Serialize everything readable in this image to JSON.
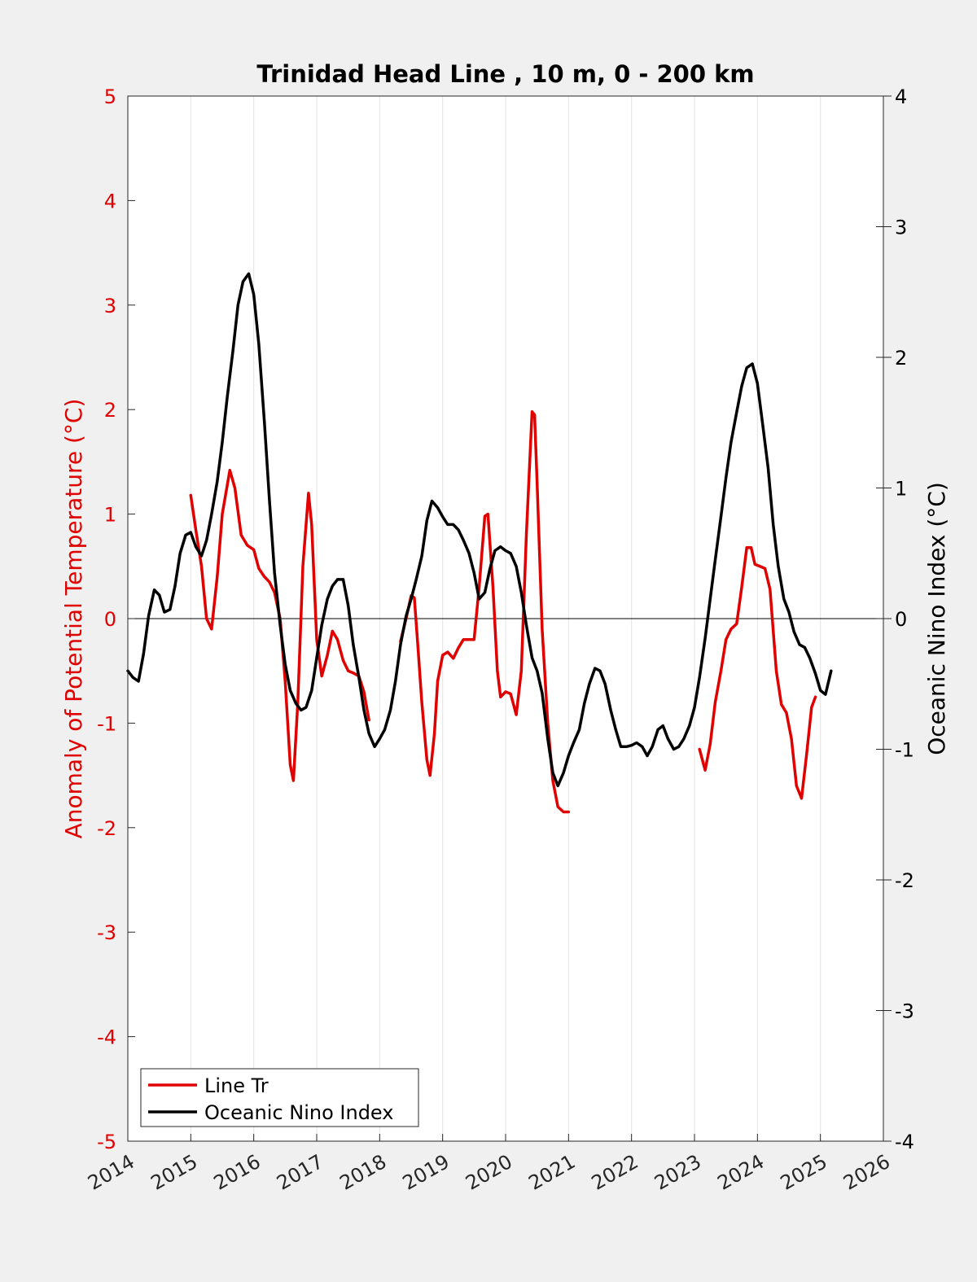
{
  "chart_data": {
    "type": "line",
    "title": "Trinidad Head Line , 10 m, 0 - 200 km",
    "ylabel_left": "Anomaly of Potential Temperature (°C)",
    "ylabel_right": "Oceanic Nino Index (°C)",
    "xlabel": "",
    "xlim": [
      2014,
      2026
    ],
    "ylim_left": [
      -5,
      5
    ],
    "ylim_right": [
      -4,
      4
    ],
    "x_ticks": [
      "2014",
      "2015",
      "2016",
      "2017",
      "2018",
      "2019",
      "2020",
      "2021",
      "2022",
      "2023",
      "2024",
      "2025",
      "2026"
    ],
    "y_ticks_left": [
      "5",
      "4",
      "3",
      "2",
      "1",
      "0",
      "-1",
      "-2",
      "-3",
      "-4",
      "-5"
    ],
    "y_ticks_right": [
      "4",
      "3",
      "2",
      "1",
      "0",
      "-1",
      "-2",
      "-3",
      "-4"
    ],
    "grid": "vertical",
    "zero_line": true,
    "legend_position": "bottom-left",
    "colors": {
      "line_tr": "#e00000",
      "oni": "#000000",
      "left_axis": "#e00000",
      "right_axis": "#000000"
    },
    "series": [
      {
        "name": "Line Tr",
        "axis": "left",
        "color": "#e00000",
        "segments": [
          [
            [
              2015.0,
              1.18
            ],
            [
              2015.08,
              0.85
            ],
            [
              2015.17,
              0.5
            ],
            [
              2015.25,
              0.0
            ],
            [
              2015.33,
              -0.1
            ],
            [
              2015.42,
              0.4
            ],
            [
              2015.5,
              1.0
            ],
            [
              2015.62,
              1.42
            ],
            [
              2015.7,
              1.25
            ],
            [
              2015.8,
              0.8
            ],
            [
              2015.9,
              0.7
            ],
            [
              2016.0,
              0.66
            ],
            [
              2016.08,
              0.48
            ],
            [
              2016.17,
              0.4
            ],
            [
              2016.25,
              0.35
            ],
            [
              2016.33,
              0.25
            ],
            [
              2016.42,
              0.0
            ],
            [
              2016.5,
              -0.6
            ],
            [
              2016.58,
              -1.4
            ],
            [
              2016.63,
              -1.55
            ],
            [
              2016.7,
              -0.8
            ],
            [
              2016.78,
              0.5
            ],
            [
              2016.87,
              1.2
            ],
            [
              2016.92,
              0.9
            ],
            [
              2017.0,
              -0.2
            ],
            [
              2017.08,
              -0.55
            ],
            [
              2017.17,
              -0.35
            ],
            [
              2017.25,
              -0.12
            ],
            [
              2017.33,
              -0.2
            ],
            [
              2017.42,
              -0.4
            ],
            [
              2017.5,
              -0.5
            ],
            [
              2017.58,
              -0.52
            ],
            [
              2017.67,
              -0.55
            ],
            [
              2017.75,
              -0.7
            ],
            [
              2017.83,
              -0.97
            ]
          ],
          [
            [
              2018.33,
              -0.22
            ],
            [
              2018.42,
              0.0
            ],
            [
              2018.5,
              0.22
            ],
            [
              2018.55,
              0.2
            ],
            [
              2018.6,
              -0.2
            ],
            [
              2018.67,
              -0.8
            ],
            [
              2018.75,
              -1.35
            ],
            [
              2018.8,
              -1.5
            ],
            [
              2018.87,
              -1.1
            ],
            [
              2018.92,
              -0.6
            ],
            [
              2019.0,
              -0.35
            ],
            [
              2019.08,
              -0.32
            ],
            [
              2019.17,
              -0.38
            ],
            [
              2019.25,
              -0.28
            ],
            [
              2019.33,
              -0.2
            ],
            [
              2019.42,
              -0.2
            ],
            [
              2019.5,
              -0.2
            ],
            [
              2019.58,
              0.3
            ],
            [
              2019.67,
              0.98
            ],
            [
              2019.72,
              1.0
            ],
            [
              2019.8,
              0.3
            ],
            [
              2019.87,
              -0.5
            ],
            [
              2019.92,
              -0.75
            ],
            [
              2020.0,
              -0.7
            ],
            [
              2020.08,
              -0.72
            ],
            [
              2020.17,
              -0.92
            ],
            [
              2020.25,
              -0.5
            ],
            [
              2020.33,
              0.8
            ],
            [
              2020.42,
              1.98
            ],
            [
              2020.46,
              1.95
            ],
            [
              2020.5,
              1.3
            ],
            [
              2020.58,
              -0.1
            ],
            [
              2020.67,
              -1.0
            ],
            [
              2020.75,
              -1.55
            ],
            [
              2020.83,
              -1.8
            ],
            [
              2020.92,
              -1.85
            ],
            [
              2021.0,
              -1.85
            ]
          ],
          [
            [
              2023.08,
              -1.25
            ],
            [
              2023.17,
              -1.45
            ],
            [
              2023.25,
              -1.2
            ],
            [
              2023.33,
              -0.8
            ],
            [
              2023.42,
              -0.5
            ],
            [
              2023.5,
              -0.2
            ],
            [
              2023.58,
              -0.1
            ],
            [
              2023.67,
              -0.05
            ],
            [
              2023.75,
              0.3
            ],
            [
              2023.83,
              0.68
            ],
            [
              2023.9,
              0.68
            ],
            [
              2023.96,
              0.52
            ],
            [
              2024.04,
              0.5
            ],
            [
              2024.12,
              0.48
            ],
            [
              2024.2,
              0.28
            ],
            [
              2024.3,
              -0.5
            ],
            [
              2024.38,
              -0.82
            ],
            [
              2024.46,
              -0.9
            ],
            [
              2024.54,
              -1.15
            ],
            [
              2024.62,
              -1.6
            ],
            [
              2024.7,
              -1.72
            ],
            [
              2024.78,
              -1.3
            ],
            [
              2024.86,
              -0.85
            ],
            [
              2024.92,
              -0.75
            ]
          ]
        ]
      },
      {
        "name": "Oceanic Nino Index",
        "axis": "right",
        "color": "#000000",
        "segments": [
          [
            [
              2014.0,
              -0.4
            ],
            [
              2014.08,
              -0.45
            ],
            [
              2014.17,
              -0.48
            ],
            [
              2014.25,
              -0.27
            ],
            [
              2014.33,
              0.02
            ],
            [
              2014.42,
              0.22
            ],
            [
              2014.5,
              0.18
            ],
            [
              2014.58,
              0.05
            ],
            [
              2014.67,
              0.07
            ],
            [
              2014.75,
              0.25
            ],
            [
              2014.83,
              0.5
            ],
            [
              2014.92,
              0.64
            ],
            [
              2015.0,
              0.66
            ],
            [
              2015.08,
              0.55
            ],
            [
              2015.17,
              0.48
            ],
            [
              2015.25,
              0.6
            ],
            [
              2015.33,
              0.8
            ],
            [
              2015.42,
              1.05
            ],
            [
              2015.5,
              1.35
            ],
            [
              2015.58,
              1.7
            ],
            [
              2015.67,
              2.05
            ],
            [
              2015.75,
              2.4
            ],
            [
              2015.83,
              2.58
            ],
            [
              2015.92,
              2.64
            ],
            [
              2016.0,
              2.48
            ],
            [
              2016.08,
              2.1
            ],
            [
              2016.17,
              1.5
            ],
            [
              2016.25,
              0.9
            ],
            [
              2016.33,
              0.35
            ],
            [
              2016.42,
              -0.05
            ],
            [
              2016.5,
              -0.35
            ],
            [
              2016.58,
              -0.55
            ],
            [
              2016.67,
              -0.65
            ],
            [
              2016.75,
              -0.7
            ],
            [
              2016.83,
              -0.68
            ],
            [
              2016.92,
              -0.55
            ],
            [
              2017.0,
              -0.3
            ],
            [
              2017.08,
              -0.05
            ],
            [
              2017.17,
              0.15
            ],
            [
              2017.25,
              0.25
            ],
            [
              2017.33,
              0.3
            ],
            [
              2017.42,
              0.3
            ],
            [
              2017.5,
              0.1
            ],
            [
              2017.58,
              -0.2
            ],
            [
              2017.67,
              -0.45
            ],
            [
              2017.75,
              -0.7
            ],
            [
              2017.83,
              -0.88
            ],
            [
              2017.92,
              -0.98
            ],
            [
              2018.0,
              -0.92
            ],
            [
              2018.08,
              -0.85
            ],
            [
              2018.17,
              -0.7
            ],
            [
              2018.25,
              -0.48
            ],
            [
              2018.33,
              -0.2
            ],
            [
              2018.42,
              0.02
            ],
            [
              2018.5,
              0.15
            ],
            [
              2018.58,
              0.3
            ],
            [
              2018.67,
              0.48
            ],
            [
              2018.75,
              0.75
            ],
            [
              2018.83,
              0.9
            ],
            [
              2018.92,
              0.85
            ],
            [
              2019.0,
              0.78
            ],
            [
              2019.08,
              0.72
            ],
            [
              2019.17,
              0.72
            ],
            [
              2019.25,
              0.68
            ],
            [
              2019.33,
              0.6
            ],
            [
              2019.42,
              0.5
            ],
            [
              2019.5,
              0.35
            ],
            [
              2019.58,
              0.15
            ],
            [
              2019.67,
              0.2
            ],
            [
              2019.75,
              0.38
            ],
            [
              2019.83,
              0.52
            ],
            [
              2019.92,
              0.55
            ],
            [
              2020.0,
              0.52
            ],
            [
              2020.08,
              0.5
            ],
            [
              2020.17,
              0.4
            ],
            [
              2020.25,
              0.2
            ],
            [
              2020.33,
              -0.05
            ],
            [
              2020.42,
              -0.3
            ],
            [
              2020.5,
              -0.4
            ],
            [
              2020.58,
              -0.57
            ],
            [
              2020.67,
              -0.92
            ],
            [
              2020.75,
              -1.18
            ],
            [
              2020.83,
              -1.28
            ],
            [
              2020.92,
              -1.18
            ],
            [
              2021.0,
              -1.05
            ],
            [
              2021.08,
              -0.95
            ],
            [
              2021.17,
              -0.85
            ],
            [
              2021.25,
              -0.65
            ],
            [
              2021.33,
              -0.5
            ],
            [
              2021.42,
              -0.38
            ],
            [
              2021.5,
              -0.4
            ],
            [
              2021.58,
              -0.5
            ],
            [
              2021.67,
              -0.7
            ],
            [
              2021.75,
              -0.85
            ],
            [
              2021.83,
              -0.98
            ],
            [
              2021.92,
              -0.98
            ],
            [
              2022.0,
              -0.97
            ],
            [
              2022.08,
              -0.95
            ],
            [
              2022.17,
              -0.98
            ],
            [
              2022.25,
              -1.05
            ],
            [
              2022.33,
              -0.98
            ],
            [
              2022.42,
              -0.85
            ],
            [
              2022.5,
              -0.82
            ],
            [
              2022.58,
              -0.92
            ],
            [
              2022.67,
              -1.0
            ],
            [
              2022.75,
              -0.98
            ],
            [
              2022.83,
              -0.92
            ],
            [
              2022.92,
              -0.82
            ],
            [
              2023.0,
              -0.68
            ],
            [
              2023.08,
              -0.45
            ],
            [
              2023.17,
              -0.15
            ],
            [
              2023.25,
              0.15
            ],
            [
              2023.33,
              0.45
            ],
            [
              2023.42,
              0.78
            ],
            [
              2023.5,
              1.08
            ],
            [
              2023.58,
              1.35
            ],
            [
              2023.67,
              1.58
            ],
            [
              2023.75,
              1.78
            ],
            [
              2023.83,
              1.92
            ],
            [
              2023.92,
              1.95
            ],
            [
              2024.0,
              1.8
            ],
            [
              2024.08,
              1.5
            ],
            [
              2024.17,
              1.15
            ],
            [
              2024.25,
              0.72
            ],
            [
              2024.33,
              0.4
            ],
            [
              2024.42,
              0.15
            ],
            [
              2024.5,
              0.05
            ],
            [
              2024.58,
              -0.1
            ],
            [
              2024.67,
              -0.2
            ],
            [
              2024.75,
              -0.22
            ],
            [
              2024.83,
              -0.3
            ],
            [
              2024.92,
              -0.42
            ],
            [
              2025.0,
              -0.55
            ],
            [
              2025.08,
              -0.58
            ],
            [
              2025.17,
              -0.4
            ]
          ]
        ]
      }
    ]
  }
}
